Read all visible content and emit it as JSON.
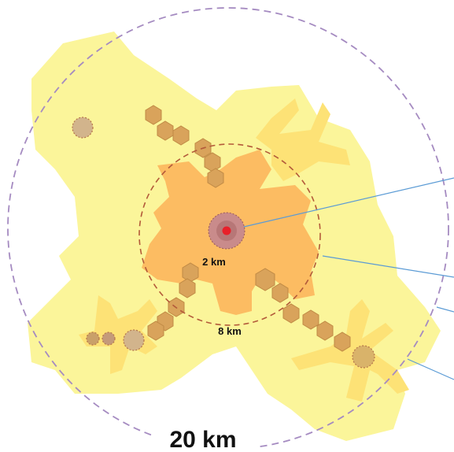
{
  "labels": {
    "inner_radius": "2 km",
    "middle_radius": "8 km",
    "outer_radius": "20 km"
  }
}
